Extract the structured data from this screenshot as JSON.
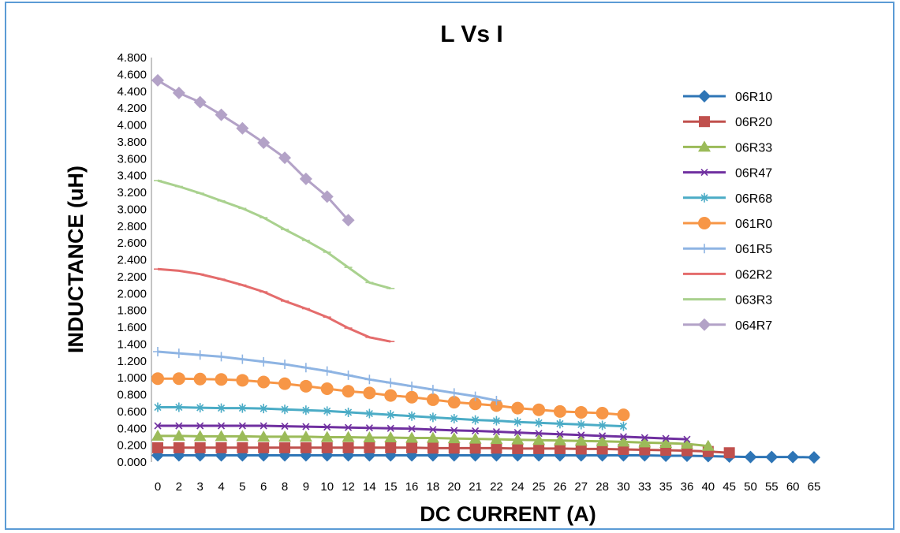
{
  "chart_data": {
    "type": "line",
    "title": "L Vs I",
    "xlabel": "DC CURRENT (A)",
    "ylabel": "INDUCTANCE  (uH)",
    "categories": [
      "0",
      "2",
      "3",
      "4",
      "5",
      "6",
      "8",
      "9",
      "10",
      "12",
      "14",
      "15",
      "16",
      "18",
      "20",
      "21",
      "22",
      "24",
      "25",
      "26",
      "27",
      "28",
      "30",
      "33",
      "35",
      "36",
      "40",
      "45",
      "50",
      "55",
      "60",
      "65"
    ],
    "yticks": [
      "0.000",
      "0.200",
      "0.400",
      "0.600",
      "0.800",
      "1.000",
      "1.200",
      "1.400",
      "1.600",
      "1.800",
      "2.000",
      "2.200",
      "2.400",
      "2.600",
      "2.800",
      "3.000",
      "3.200",
      "3.400",
      "3.600",
      "3.800",
      "4.000",
      "4.200",
      "4.400",
      "4.600",
      "4.800"
    ],
    "ylim": [
      0,
      4.8
    ],
    "legend_position": "right",
    "grid": false,
    "series": [
      {
        "name": "06R10",
        "color": "#2e75b6",
        "marker": "diamond",
        "values": [
          0.08,
          0.08,
          0.08,
          0.08,
          0.08,
          0.08,
          0.08,
          0.08,
          0.08,
          0.08,
          0.08,
          0.08,
          0.08,
          0.08,
          0.08,
          0.08,
          0.08,
          0.08,
          0.08,
          0.08,
          0.08,
          0.08,
          0.08,
          0.08,
          0.075,
          0.075,
          0.07,
          0.065,
          0.06,
          0.06,
          0.06,
          0.055
        ]
      },
      {
        "name": "06R20",
        "color": "#c0504d",
        "marker": "square",
        "values": [
          0.17,
          0.17,
          0.17,
          0.17,
          0.17,
          0.17,
          0.17,
          0.17,
          0.17,
          0.17,
          0.17,
          0.17,
          0.17,
          0.165,
          0.165,
          0.165,
          0.165,
          0.16,
          0.16,
          0.16,
          0.155,
          0.155,
          0.15,
          0.145,
          0.14,
          0.135,
          0.125,
          0.11,
          null,
          null,
          null,
          null
        ]
      },
      {
        "name": "06R33",
        "color": "#9bbb59",
        "marker": "triangle",
        "values": [
          0.31,
          0.31,
          0.305,
          0.305,
          0.305,
          0.3,
          0.3,
          0.3,
          0.295,
          0.295,
          0.29,
          0.29,
          0.285,
          0.285,
          0.28,
          0.275,
          0.27,
          0.265,
          0.26,
          0.255,
          0.25,
          0.245,
          0.24,
          0.23,
          0.225,
          0.215,
          0.19,
          null,
          null,
          null,
          null,
          null
        ]
      },
      {
        "name": "06R47",
        "color": "#7030a0",
        "marker": "x",
        "values": [
          0.43,
          0.43,
          0.43,
          0.43,
          0.43,
          0.43,
          0.425,
          0.42,
          0.415,
          0.41,
          0.405,
          0.4,
          0.395,
          0.385,
          0.375,
          0.37,
          0.36,
          0.35,
          0.34,
          0.33,
          0.32,
          0.31,
          0.3,
          0.29,
          0.28,
          0.27,
          null,
          null,
          null,
          null,
          null,
          null
        ]
      },
      {
        "name": "06R68",
        "color": "#4bacc6",
        "marker": "star",
        "values": [
          0.65,
          0.65,
          0.645,
          0.64,
          0.64,
          0.635,
          0.625,
          0.615,
          0.605,
          0.59,
          0.575,
          0.56,
          0.545,
          0.53,
          0.515,
          0.5,
          0.49,
          0.475,
          0.465,
          0.455,
          0.445,
          0.435,
          0.425,
          null,
          null,
          null,
          null,
          null,
          null,
          null,
          null,
          null
        ]
      },
      {
        "name": "061R0",
        "color": "#f79646",
        "marker": "circle",
        "values": [
          0.99,
          0.99,
          0.985,
          0.98,
          0.97,
          0.95,
          0.93,
          0.9,
          0.87,
          0.84,
          0.82,
          0.79,
          0.77,
          0.74,
          0.71,
          0.69,
          0.67,
          0.64,
          0.62,
          0.6,
          0.59,
          0.58,
          0.56,
          null,
          null,
          null,
          null,
          null,
          null,
          null,
          null,
          null
        ]
      },
      {
        "name": "061R5",
        "color": "#8eb4e3",
        "marker": "plus",
        "values": [
          1.31,
          1.29,
          1.27,
          1.25,
          1.22,
          1.19,
          1.16,
          1.12,
          1.08,
          1.03,
          0.98,
          0.94,
          0.9,
          0.86,
          0.82,
          0.78,
          0.73,
          null,
          null,
          null,
          null,
          null,
          null,
          null,
          null,
          null,
          null,
          null,
          null,
          null,
          null,
          null
        ]
      },
      {
        "name": "062R2",
        "color": "#e46c6c",
        "marker": "dash",
        "values": [
          2.29,
          2.27,
          2.23,
          2.17,
          2.1,
          2.02,
          1.91,
          1.82,
          1.72,
          1.59,
          1.48,
          1.43,
          null,
          null,
          null,
          null,
          null,
          null,
          null,
          null,
          null,
          null,
          null,
          null,
          null,
          null,
          null,
          null,
          null,
          null,
          null,
          null
        ]
      },
      {
        "name": "063R3",
        "color": "#a9d18e",
        "marker": "dash",
        "values": [
          3.34,
          3.27,
          3.19,
          3.1,
          3.01,
          2.9,
          2.76,
          2.63,
          2.49,
          2.31,
          2.13,
          2.06,
          null,
          null,
          null,
          null,
          null,
          null,
          null,
          null,
          null,
          null,
          null,
          null,
          null,
          null,
          null,
          null,
          null,
          null,
          null,
          null
        ]
      },
      {
        "name": "064R7",
        "color": "#b3a2c7",
        "marker": "diamond",
        "values": [
          4.53,
          4.38,
          4.27,
          4.12,
          3.96,
          3.79,
          3.61,
          3.36,
          3.15,
          2.87,
          null,
          null,
          null,
          null,
          null,
          null,
          null,
          null,
          null,
          null,
          null,
          null,
          null,
          null,
          null,
          null,
          null,
          null,
          null,
          null,
          null,
          null
        ]
      }
    ]
  }
}
